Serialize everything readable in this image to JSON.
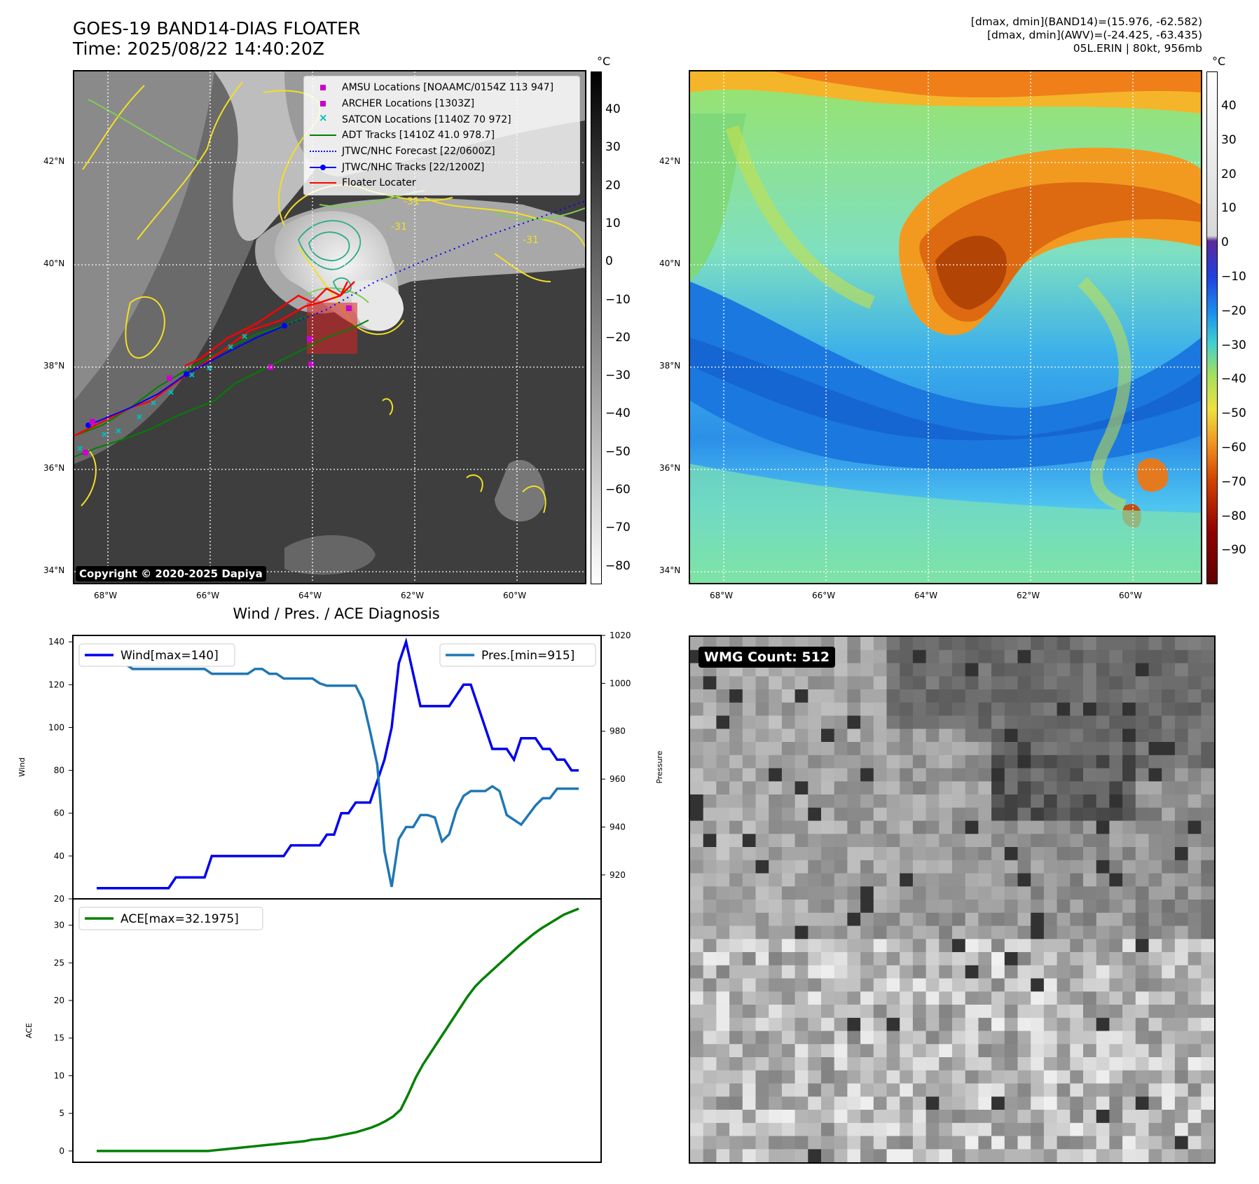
{
  "header": {
    "title_line1": "GOES-19 BAND14-DIAS FLOATER",
    "title_line2": "Time: 2025/08/22 14:40:20Z",
    "info_line1": "[dmax, dmin](BAND14)=(15.976, -62.582)",
    "info_line2": "[dmax, dmin](AWV)=(-24.425, -63.435)",
    "info_line3": "05L.ERIN | 80kt, 956mb"
  },
  "map_axes": {
    "lat_labels": [
      "42°N",
      "40°N",
      "38°N",
      "36°N",
      "34°N"
    ],
    "lon_labels": [
      "68°W",
      "66°W",
      "64°W",
      "62°W",
      "60°W"
    ]
  },
  "ir_panel": {
    "colorbar_unit": "°C",
    "colorbar_ticks": [
      "40",
      "30",
      "20",
      "10",
      "0",
      "−10",
      "−20",
      "−30",
      "−40",
      "−50",
      "−60",
      "−70",
      "−80"
    ],
    "contour_label": "-31",
    "copyright": "Copyright © 2020-2025 Dapiya",
    "legend": [
      {
        "label": "AMSU Locations [NOAAMC/0154Z 113 947]",
        "color": "#cc00cc",
        "symbol": "square"
      },
      {
        "label": "ARCHER Locations [1303Z]",
        "color": "#cc00cc",
        "symbol": "square"
      },
      {
        "label": "SATCON Locations [1140Z 70 972]",
        "color": "#00bbbb",
        "symbol": "x"
      },
      {
        "label": "ADT Tracks [1410Z 41.0 978.7]",
        "color": "#008000",
        "symbol": "line"
      },
      {
        "label": "JTWC/NHC Forecast [22/0600Z]",
        "color": "#0000ff",
        "symbol": "dotted"
      },
      {
        "label": "JTWC/NHC Tracks [22/1200Z]",
        "color": "#0000ff",
        "symbol": "line-dot"
      },
      {
        "label": "Floater Locater",
        "color": "#ff0000",
        "symbol": "line"
      }
    ]
  },
  "wv_panel": {
    "colorbar_unit": "°C",
    "colorbar_ticks": [
      "40",
      "30",
      "20",
      "10",
      "0",
      "−10",
      "−20",
      "−30",
      "−40",
      "−50",
      "−60",
      "−70",
      "−80",
      "−90"
    ]
  },
  "wmg_panel": {
    "badge": "WMG Count: 512"
  },
  "chart_data": [
    {
      "type": "line",
      "title": "Wind / Pres. / ACE Diagnosis",
      "ylabel": "Wind",
      "y2label": "Pressure",
      "ylim": [
        20,
        143
      ],
      "y2lim": [
        910,
        1020
      ],
      "yticks": [
        20,
        40,
        60,
        80,
        100,
        120,
        140
      ],
      "y2ticks": [
        920,
        940,
        960,
        980,
        1000,
        1020
      ],
      "series": [
        {
          "name": "Wind[max=140]",
          "color": "#0000ee",
          "axis": "left",
          "values": [
            25,
            25,
            25,
            25,
            25,
            25,
            25,
            25,
            25,
            25,
            25,
            30,
            30,
            30,
            30,
            30,
            40,
            40,
            40,
            40,
            40,
            40,
            40,
            40,
            40,
            40,
            40,
            45,
            45,
            45,
            45,
            45,
            50,
            50,
            60,
            60,
            65,
            65,
            65,
            75,
            85,
            100,
            130,
            140,
            125,
            110,
            110,
            110,
            110,
            110,
            115,
            120,
            120,
            110,
            100,
            90,
            90,
            90,
            85,
            95,
            95,
            95,
            90,
            90,
            85,
            85,
            80,
            80
          ]
        },
        {
          "name": "Pres.[min=915]",
          "color": "#1f77b4",
          "axis": "right",
          "values": [
            1015,
            1015,
            1010,
            1008,
            1008,
            1006,
            1006,
            1006,
            1006,
            1006,
            1006,
            1006,
            1006,
            1006,
            1006,
            1006,
            1004,
            1004,
            1004,
            1004,
            1004,
            1004,
            1006,
            1006,
            1004,
            1004,
            1002,
            1002,
            1002,
            1002,
            1002,
            1000,
            999,
            999,
            999,
            999,
            999,
            993,
            980,
            966,
            930,
            915,
            935,
            940,
            940,
            945,
            945,
            944,
            934,
            937,
            947,
            953,
            955,
            955,
            955,
            957,
            955,
            945,
            943,
            941,
            945,
            949,
            952,
            952,
            956,
            956,
            956,
            956
          ]
        }
      ]
    },
    {
      "type": "line",
      "ylabel": "ACE",
      "ylim": [
        -1.5,
        33.5
      ],
      "yticks": [
        0,
        5,
        10,
        15,
        20,
        25,
        30
      ],
      "series": [
        {
          "name": "ACE[max=32.1975]",
          "color": "#008000",
          "values": [
            0,
            0,
            0,
            0,
            0,
            0,
            0,
            0,
            0,
            0,
            0,
            0,
            0,
            0,
            0,
            0,
            0.1,
            0.2,
            0.3,
            0.4,
            0.5,
            0.6,
            0.7,
            0.8,
            0.9,
            1.0,
            1.1,
            1.2,
            1.3,
            1.5,
            1.6,
            1.7,
            1.9,
            2.1,
            2.3,
            2.5,
            2.8,
            3.1,
            3.5,
            4.0,
            4.6,
            5.5,
            7.5,
            9.7,
            11.5,
            13.0,
            14.5,
            16.0,
            17.5,
            19.0,
            20.5,
            21.8,
            22.8,
            23.7,
            24.6,
            25.5,
            26.4,
            27.3,
            28.1,
            28.9,
            29.6,
            30.2,
            30.8,
            31.4,
            31.8,
            32.2
          ]
        }
      ]
    }
  ]
}
